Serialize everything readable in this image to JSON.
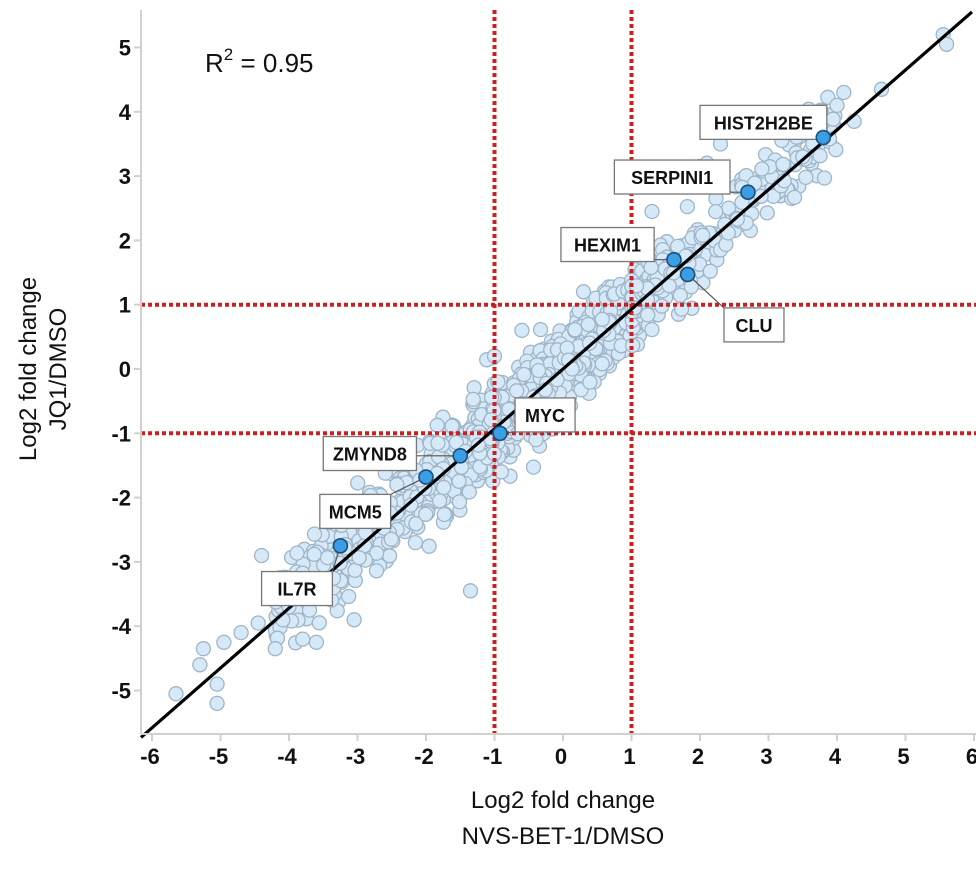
{
  "chart_data": {
    "type": "scatter",
    "title": "",
    "xlabel": "Log2 fold change\nNVS-BET-1/DMSO",
    "xlabel_lines": [
      "Log2 fold change",
      "NVS-BET-1/DMSO"
    ],
    "ylabel": "Log2 fold change\nJQ1/DMSO",
    "ylabel_lines": [
      "Log2 fold change",
      "JQ1/DMSO"
    ],
    "xlim": [
      -6.15,
      6.05
    ],
    "ylim": [
      -5.65,
      5.7
    ],
    "x_ticks": [
      -6,
      -5,
      -4,
      -3,
      -2,
      -1,
      0,
      1,
      2,
      3,
      4,
      5,
      6
    ],
    "y_ticks": [
      -5,
      -4,
      -3,
      -2,
      -1,
      0,
      1,
      2,
      3,
      4,
      5
    ],
    "grid": false,
    "annotation": {
      "text": "R",
      "superscript": "2",
      "rest": " = 0.95",
      "r_squared": 0.95
    },
    "regression_line": {
      "slope": 0.93,
      "intercept": 0.0,
      "color": "#000000"
    },
    "threshold_lines": {
      "x": [
        -1,
        1
      ],
      "y": [
        -1,
        1
      ],
      "color": "#cc1f1f",
      "style": "dotted"
    },
    "background_points": {
      "description": "~1500 genes, light blue circles tightly correlated along y ≈ x",
      "fill": "#d6e9f8",
      "stroke": "#9fb5c8",
      "approx_count": 1500
    },
    "highlighted_genes": [
      {
        "gene": "HIST2H2BE",
        "x": 3.8,
        "y": 3.6,
        "label_x": 2.0,
        "label_y": 4.1
      },
      {
        "gene": "SERPINI1",
        "x": 2.7,
        "y": 2.75,
        "label_x": 0.75,
        "label_y": 3.25
      },
      {
        "gene": "HEXIM1",
        "x": 1.62,
        "y": 1.7,
        "label_x": -0.03,
        "label_y": 2.2
      },
      {
        "gene": "CLU",
        "x": 1.82,
        "y": 1.47,
        "label_x": 2.35,
        "label_y": 0.95
      },
      {
        "gene": "MYC",
        "x": -0.92,
        "y": -1.0,
        "label_x": -0.7,
        "label_y": -0.45
      },
      {
        "gene": "ZMYND8",
        "x": -1.5,
        "y": -1.35,
        "label_x": -3.5,
        "label_y": -1.05
      },
      {
        "gene": "MCM5",
        "x": -2.0,
        "y": -1.68,
        "label_x": -3.55,
        "label_y": -1.95
      },
      {
        "gene": "IL7R",
        "x": -3.25,
        "y": -2.75,
        "label_x": -4.4,
        "label_y": -3.15
      }
    ],
    "highlight_color": "#3a9ee4",
    "highlight_stroke": "#1b4f7a"
  }
}
